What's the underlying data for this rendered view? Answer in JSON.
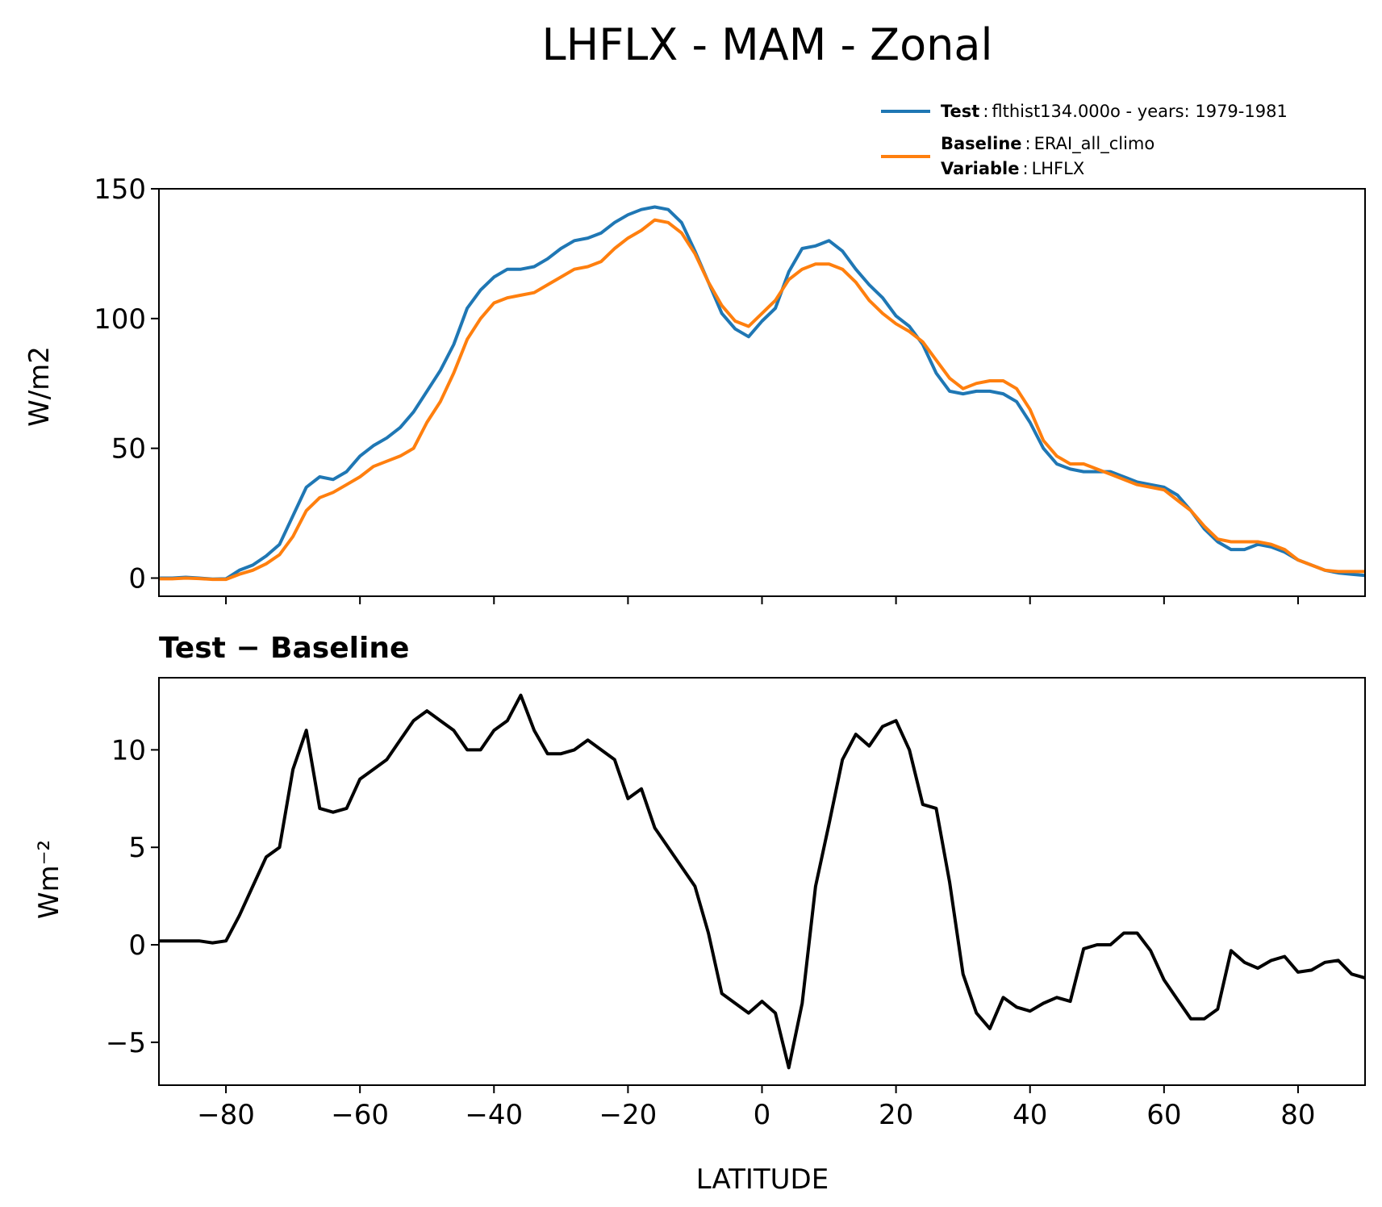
{
  "title": "LHFLX - MAM - Zonal",
  "legend": {
    "test": {
      "label": "Test",
      "text": "flthist134.000o - years: 1979-1981",
      "color": "#1f77b4"
    },
    "baseline": {
      "label": "Baseline",
      "text": "ERAI_all_climo",
      "color": "#ff7f0e"
    },
    "variable": {
      "label": "Variable",
      "text": "LHFLX"
    }
  },
  "chart_data": [
    {
      "type": "line",
      "title": "",
      "xlabel": "",
      "ylabel": "W/m2",
      "xlim": [
        -90,
        90
      ],
      "ylim": [
        -7,
        150
      ],
      "yticks": [
        0,
        50,
        100,
        150
      ],
      "yticklabels": [
        "0",
        "50",
        "100",
        "150"
      ],
      "xticks": [
        -80,
        -60,
        -40,
        -20,
        0,
        20,
        40,
        60,
        80
      ],
      "grid": false,
      "legend_position": "top-right, above axes",
      "x": [
        -90,
        -88,
        -86,
        -84,
        -82,
        -80,
        -78,
        -76,
        -74,
        -72,
        -70,
        -68,
        -66,
        -64,
        -62,
        -60,
        -58,
        -56,
        -54,
        -52,
        -50,
        -48,
        -46,
        -44,
        -42,
        -40,
        -38,
        -36,
        -34,
        -32,
        -30,
        -28,
        -26,
        -24,
        -22,
        -20,
        -18,
        -16,
        -14,
        -12,
        -10,
        -8,
        -6,
        -4,
        -2,
        0,
        2,
        4,
        6,
        8,
        10,
        12,
        14,
        16,
        18,
        20,
        22,
        24,
        26,
        28,
        30,
        32,
        34,
        36,
        38,
        40,
        42,
        44,
        46,
        48,
        50,
        52,
        54,
        56,
        58,
        60,
        62,
        64,
        66,
        68,
        70,
        72,
        74,
        76,
        78,
        80,
        82,
        84,
        86,
        88,
        90
      ],
      "series": [
        {
          "name": "Test",
          "color": "#1f77b4",
          "values": [
            0,
            0,
            0.3,
            0,
            -0.4,
            -0.3,
            3,
            5,
            8.5,
            13,
            24,
            35,
            39,
            38,
            41,
            47,
            51,
            54,
            58,
            64,
            72,
            80,
            90,
            104,
            111,
            116,
            119,
            119,
            120,
            123,
            127,
            130,
            131,
            133,
            137,
            140,
            142,
            143,
            142,
            137,
            126,
            114,
            102,
            96,
            93,
            99,
            104,
            118,
            127,
            128,
            130,
            126,
            119,
            113,
            108,
            101,
            97,
            90,
            79,
            72,
            71,
            72,
            72,
            71,
            68,
            60,
            50,
            44,
            42,
            41,
            41,
            41,
            39,
            37,
            36,
            35,
            32,
            26,
            19,
            14,
            11,
            11,
            13,
            12,
            10,
            7,
            5,
            3,
            2,
            1.5,
            1
          ]
        },
        {
          "name": "Baseline",
          "color": "#ff7f0e",
          "values": [
            -0.3,
            -0.3,
            0,
            -0.2,
            -0.5,
            -0.5,
            1.5,
            3,
            5.5,
            9,
            16,
            26,
            31,
            33,
            36,
            39,
            43,
            45,
            47,
            50,
            60,
            68,
            79,
            92,
            100,
            106,
            108,
            109,
            110,
            113,
            116,
            119,
            120,
            122,
            127,
            131,
            134,
            138,
            137,
            133,
            125,
            114,
            105,
            99,
            97,
            102,
            107,
            115,
            119,
            121,
            121,
            119,
            114,
            107,
            102,
            98,
            95,
            91,
            84,
            77,
            73,
            75,
            76,
            76,
            73,
            65,
            53,
            47,
            44,
            44,
            42,
            40,
            38,
            36,
            35,
            34,
            30,
            26,
            20,
            15,
            14,
            14,
            14,
            13,
            11,
            7,
            5,
            3,
            2.5,
            2.5,
            2.5
          ]
        }
      ]
    },
    {
      "type": "line",
      "title": "Test − Baseline",
      "xlabel": "LATITUDE",
      "ylabel": "Wm⁻²",
      "xlim": [
        -90,
        90
      ],
      "ylim": [
        -7.2,
        13.7
      ],
      "yticks": [
        -5,
        0,
        5,
        10
      ],
      "yticklabels": [
        "−5",
        "0",
        "5",
        "10"
      ],
      "xticks": [
        -80,
        -60,
        -40,
        -20,
        0,
        20,
        40,
        60,
        80
      ],
      "xticklabels": [
        "−80",
        "−60",
        "−40",
        "−20",
        "0",
        "20",
        "40",
        "60",
        "80"
      ],
      "grid": false,
      "series": [
        {
          "color": "#000000",
          "values": [
            0.2,
            0.2,
            0.2,
            0.2,
            0.1,
            0.2,
            1.5,
            3,
            4.5,
            5,
            9,
            11,
            7,
            6.8,
            7,
            8.5,
            9,
            9.5,
            10.5,
            11.5,
            12,
            11.5,
            11,
            10,
            10,
            11,
            11.5,
            12.8,
            11,
            9.8,
            9.8,
            10,
            10.5,
            10,
            9.5,
            7.5,
            8,
            6,
            5,
            4,
            3,
            0.6,
            -2.5,
            -3,
            -3.5,
            -2.9,
            -3.5,
            -6.3,
            -3,
            3,
            6.2,
            9.5,
            10.8,
            10.2,
            11.2,
            11.5,
            10,
            7.2,
            7,
            3.2,
            -1.5,
            -3.5,
            -4.3,
            -2.7,
            -3.2,
            -3.4,
            -3,
            -2.7,
            -2.9,
            -0.2,
            0,
            0,
            0.6,
            0.6,
            -0.3,
            -1.8,
            -2.8,
            -3.8,
            -3.8,
            -3.3,
            -0.3,
            -0.9,
            -1.2,
            -0.8,
            -0.6,
            -1.4,
            -1.3,
            -0.9,
            -0.8,
            -1.5,
            -1.7
          ]
        }
      ]
    }
  ]
}
